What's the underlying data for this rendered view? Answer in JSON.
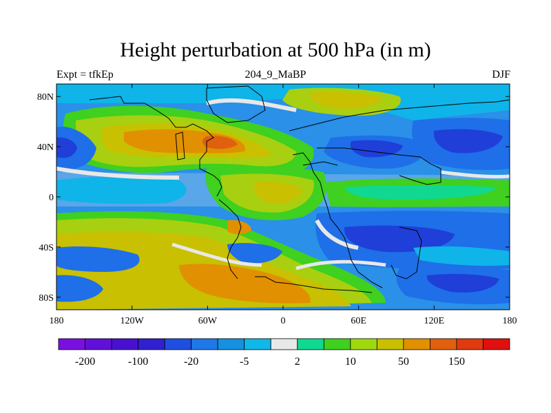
{
  "title": "Height perturbation at 500 hPa (in m)",
  "subtitle_left": "Expt = tfkEp",
  "subtitle_center": "204_9_MaBP",
  "subtitle_right": "DJF",
  "map": {
    "lon_range": [
      -180,
      180
    ],
    "lat_range": [
      -90,
      90
    ],
    "lon_ticks": [
      {
        "value": -180,
        "label": "180"
      },
      {
        "value": -120,
        "label": "120W"
      },
      {
        "value": -60,
        "label": "60W"
      },
      {
        "value": 0,
        "label": "0"
      },
      {
        "value": 60,
        "label": "60E"
      },
      {
        "value": 120,
        "label": "120E"
      },
      {
        "value": 180,
        "label": "180"
      }
    ],
    "lat_ticks": [
      {
        "value": 80,
        "label": "80N"
      },
      {
        "value": 40,
        "label": "40N"
      },
      {
        "value": 0,
        "label": "0"
      },
      {
        "value": -40,
        "label": "40S"
      },
      {
        "value": -80,
        "label": "80S"
      }
    ],
    "colors": {
      "deep_blue": "#1f3fd8",
      "blue": "#1f6fe8",
      "mid_blue": "#2a90e8",
      "cyan": "#0fb4e8",
      "white": "#e8e8e8",
      "teal": "#10d890",
      "green": "#3fd020",
      "yellow_green": "#a8d010",
      "olive": "#c8c000",
      "orange": "#e09000",
      "dark_orange": "#e06010"
    }
  },
  "colorbar": {
    "colors": [
      "#7a10e0",
      "#6010d8",
      "#4a10d0",
      "#3020d0",
      "#1f4fe0",
      "#1f78e8",
      "#1690e0",
      "#10b8e8",
      "#e8e8e8",
      "#10d890",
      "#40d020",
      "#a0d810",
      "#c8c000",
      "#e09000",
      "#e06010",
      "#e03a10",
      "#e01010"
    ],
    "labels": [
      "-200",
      "-100",
      "-20",
      "-5",
      "2",
      "10",
      "50",
      "150"
    ]
  }
}
